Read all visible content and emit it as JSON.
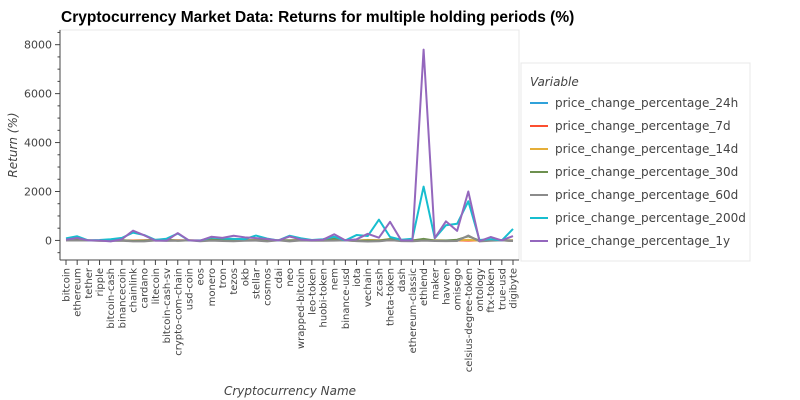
{
  "chart_data": {
    "type": "line",
    "title": "Cryptocurrency Market Data: Returns for multiple holding periods (%)",
    "xlabel": "Cryptocurrency Name",
    "ylabel": "Return (%)",
    "ylim": [
      -800,
      8600
    ],
    "yticks": [
      0,
      2000,
      4000,
      6000,
      8000
    ],
    "grid": false,
    "legend": {
      "title": "Variable",
      "placement": "right"
    },
    "categories": [
      "bitcoin",
      "ethereum",
      "tether",
      "ripple",
      "bitcoin-cash",
      "binancecoin",
      "chainlink",
      "cardano",
      "litecoin",
      "bitcoin-cash-sv",
      "crypto-com-chain",
      "usd-coin",
      "eos",
      "monero",
      "tron",
      "tezos",
      "okb",
      "stellar",
      "cosmos",
      "cdai",
      "neo",
      "wrapped-bitcoin",
      "leo-token",
      "huobi-token",
      "nem",
      "binance-usd",
      "iota",
      "vechain",
      "zcash",
      "theta-token",
      "dash",
      "ethereum-classic",
      "ethlend",
      "maker",
      "havven",
      "omisego",
      "celsius-degree-token",
      "ontology",
      "ftx-token",
      "true-usd",
      "digibyte"
    ],
    "series": [
      {
        "name": "price_change_percentage_24h",
        "color": "#30a2da",
        "values": [
          1,
          2,
          0,
          -1,
          1,
          1,
          -2,
          0,
          1,
          1,
          -1,
          0,
          0,
          1,
          1,
          0,
          -1,
          0,
          2,
          0,
          1,
          0,
          0,
          0,
          1,
          0,
          0,
          1,
          1,
          0,
          1,
          0,
          2,
          -1,
          1,
          0,
          2,
          0,
          1,
          0,
          1
        ]
      },
      {
        "name": "price_change_percentage_7d",
        "color": "#fc4f30",
        "values": [
          7,
          5,
          0,
          -5,
          -3,
          2,
          -4,
          8,
          5,
          4,
          9,
          0,
          -2,
          5,
          3,
          -8,
          4,
          6,
          -3,
          0,
          2,
          7,
          0,
          1,
          9,
          0,
          -6,
          14,
          3,
          12,
          1,
          -3,
          10,
          3,
          -5,
          2,
          -8,
          2,
          -2,
          0,
          -11
        ]
      },
      {
        "name": "price_change_percentage_14d",
        "color": "#e5ae38",
        "values": [
          6,
          8,
          0,
          -8,
          -2,
          -4,
          -20,
          -1,
          5,
          2,
          -1,
          0,
          -9,
          10,
          -3,
          -8,
          6,
          5,
          -6,
          0,
          -1,
          6,
          -5,
          1,
          20,
          0,
          -14,
          22,
          0,
          60,
          -5,
          -1,
          10,
          0,
          -2,
          2,
          24,
          -6,
          -5,
          0,
          8
        ]
      },
      {
        "name": "price_change_percentage_30d",
        "color": "#6d904f",
        "values": [
          7,
          28,
          0,
          -2,
          21,
          8,
          -24,
          -12,
          21,
          30,
          -15,
          0,
          -6,
          40,
          11,
          -3,
          4,
          7,
          -5,
          0,
          -5,
          7,
          4,
          -2,
          72,
          0,
          -16,
          -9,
          -11,
          55,
          -5,
          -2,
          66,
          -6,
          -10,
          30,
          170,
          -5,
          28,
          0,
          -17
        ]
      },
      {
        "name": "price_change_percentage_60d",
        "color": "#8b8b8b",
        "values": [
          -4,
          -3,
          0,
          -16,
          -17,
          -12,
          -40,
          -39,
          -5,
          -17,
          -15,
          0,
          -35,
          -6,
          -25,
          -33,
          -12,
          -6,
          -37,
          0,
          -40,
          -4,
          -15,
          -12,
          -8,
          0,
          -27,
          -46,
          -36,
          14,
          -27,
          -35,
          -9,
          -22,
          -28,
          -22,
          200,
          -38,
          -13,
          0,
          -23
        ]
      },
      {
        "name": "price_change_percentage_200d",
        "color": "#17becf",
        "values": [
          85,
          170,
          0,
          17,
          49,
          105,
          320,
          220,
          23,
          70,
          280,
          0,
          -6,
          120,
          80,
          62,
          52,
          200,
          75,
          0,
          190,
          90,
          20,
          50,
          150,
          0,
          220,
          180,
          850,
          140,
          29,
          70,
          2200,
          90,
          620,
          680,
          1600,
          18,
          51,
          0,
          470
        ]
      },
      {
        "name": "price_change_percentage_1y",
        "color": "#9467bd",
        "values": [
          30,
          102,
          0,
          -4,
          -39,
          48,
          400,
          210,
          -9,
          -10,
          300,
          0,
          -9,
          150,
          105,
          192,
          126,
          96,
          60,
          0,
          160,
          40,
          8,
          30,
          250,
          0,
          45,
          270,
          110,
          760,
          0,
          0,
          7800,
          96,
          780,
          390,
          2000,
          -30,
          140,
          0,
          180
        ]
      }
    ]
  }
}
